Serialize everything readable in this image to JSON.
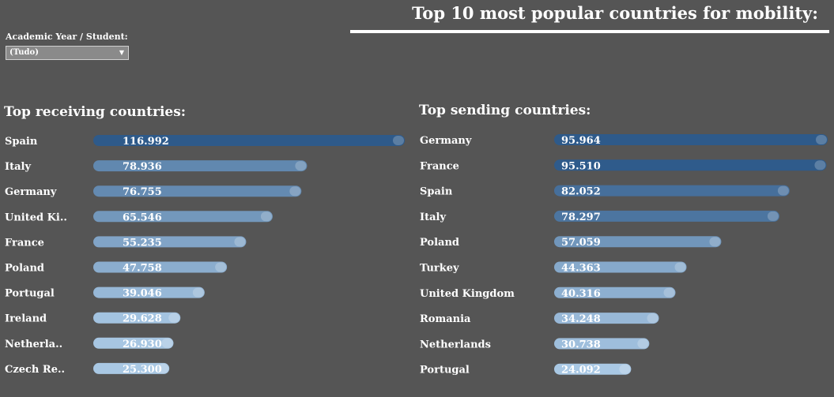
{
  "header": {
    "title": "Top 10 most popular countries for mobility:"
  },
  "filter": {
    "label": "Academic Year / Student:",
    "value": "(Tudo)",
    "arrow_icon": "caret-down-icon"
  },
  "chart_data": [
    {
      "type": "bar",
      "orientation": "horizontal",
      "title": "Top receiving countries:",
      "categories": [
        "Spain",
        "Italy",
        "Germany",
        "United Ki..",
        "France",
        "Poland",
        "Portugal",
        "Ireland",
        "Netherla..",
        "Czech Re.."
      ],
      "values": [
        116992,
        78936,
        76755,
        65546,
        55235,
        47758,
        39046,
        29628,
        26930,
        25300
      ],
      "value_labels": [
        "116.992",
        "78.936",
        "76.755",
        "65.546",
        "55.235",
        "47.758",
        "39.046",
        "29.628",
        "26.930",
        "25.300"
      ],
      "xlim": [
        0,
        116992
      ],
      "color_scale": [
        "#a9c8e4",
        "#2e5a8a"
      ]
    },
    {
      "type": "bar",
      "orientation": "horizontal",
      "title": "Top sending countries:",
      "categories": [
        "Germany",
        "France",
        "Spain",
        "Italy",
        "Poland",
        "Turkey",
        "United Kingdom",
        "Romania",
        "Netherlands",
        "Portugal"
      ],
      "values": [
        95964,
        95510,
        82052,
        78297,
        57059,
        44363,
        40316,
        34248,
        30738,
        24092
      ],
      "value_labels": [
        "95.964",
        "95.510",
        "82.052",
        "78.297",
        "57.059",
        "44.363",
        "40.316",
        "34.248",
        "30.738",
        "24.092"
      ],
      "xlim": [
        0,
        95964
      ],
      "color_scale": [
        "#a9c8e4",
        "#2e5a8a"
      ]
    }
  ]
}
